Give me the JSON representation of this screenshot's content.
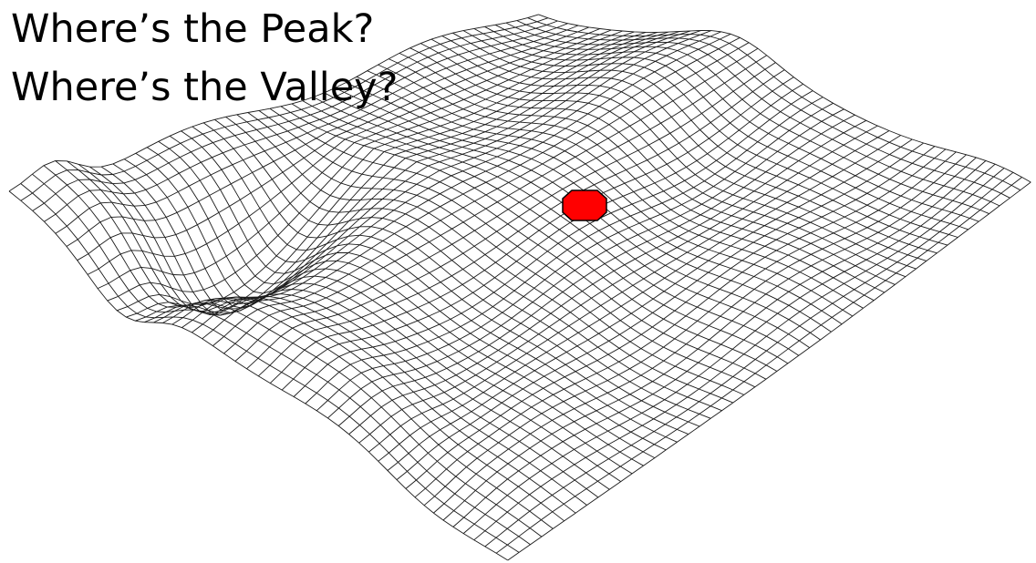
{
  "title_lines": [
    "Where’s the Peak?",
    "Where’s the Valley?"
  ]
}
